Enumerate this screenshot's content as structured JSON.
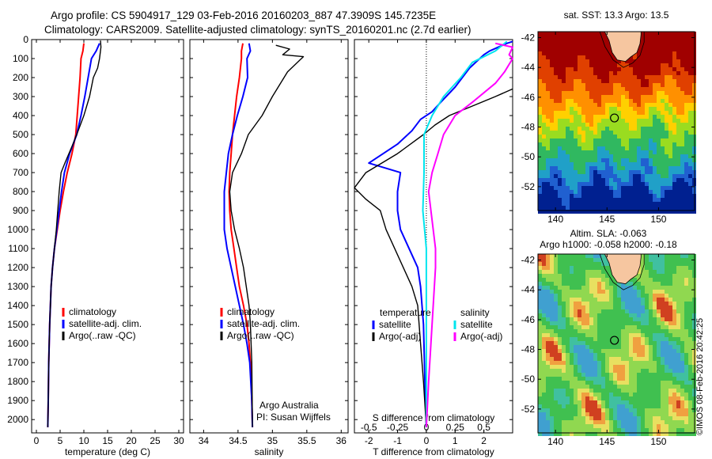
{
  "header": {
    "line1": "Argo profile: CS 5904917_129 03-Feb-2016 20160203_887 47.3909S 145.7235E",
    "line2": "Climatology: CARS2009. Satellite-adjusted climatology: synTS_20160201.nc (2.7d earlier)"
  },
  "watermark": "©IMOS 08-Feb-2016 20:42:25",
  "colors": {
    "climatology": "#ff0000",
    "satellite": "#0000ff",
    "argo": "#000000",
    "sat_salinity": "#00e5ee",
    "argo_salinity_diff": "#ff00ff"
  },
  "chart_data": [
    {
      "type": "line",
      "id": "temperature",
      "xlabel": "temperature (deg C)",
      "xlim": [
        -1,
        31
      ],
      "xticks": [
        0,
        5,
        10,
        15,
        20,
        25,
        30
      ],
      "ylim": [
        2070,
        0
      ],
      "yticks": [
        0,
        100,
        200,
        300,
        400,
        500,
        600,
        700,
        800,
        900,
        1000,
        1100,
        1200,
        1300,
        1400,
        1500,
        1600,
        1700,
        1800,
        1900,
        2000
      ],
      "legend": [
        "climatology",
        "satellite-adj. clim.",
        "Argo(..raw -QC)"
      ],
      "series": [
        {
          "name": "climatology",
          "color": "#ff0000",
          "points": [
            [
              10.0,
              20
            ],
            [
              9.8,
              60
            ],
            [
              9.4,
              100
            ],
            [
              9.2,
              200
            ],
            [
              8.9,
              300
            ],
            [
              8.6,
              400
            ],
            [
              8.3,
              500
            ],
            [
              7.5,
              600
            ],
            [
              6.5,
              700
            ],
            [
              5.7,
              800
            ],
            [
              5.0,
              900
            ],
            [
              4.4,
              1000
            ],
            [
              3.8,
              1100
            ],
            [
              3.4,
              1200
            ],
            [
              3.1,
              1300
            ],
            [
              2.8,
              1500
            ],
            [
              2.6,
              1700
            ],
            [
              2.5,
              1900
            ],
            [
              2.4,
              2040
            ]
          ]
        },
        {
          "name": "satellite-adj. clim.",
          "color": "#0000ff",
          "points": [
            [
              13.3,
              20
            ],
            [
              12.6,
              60
            ],
            [
              11.6,
              100
            ],
            [
              10.9,
              200
            ],
            [
              10.2,
              300
            ],
            [
              9.4,
              400
            ],
            [
              8.5,
              500
            ],
            [
              7.0,
              600
            ],
            [
              5.9,
              700
            ],
            [
              5.3,
              800
            ],
            [
              4.8,
              900
            ],
            [
              4.3,
              1000
            ],
            [
              3.8,
              1100
            ],
            [
              3.4,
              1200
            ],
            [
              3.1,
              1300
            ],
            [
              2.8,
              1500
            ],
            [
              2.6,
              1700
            ],
            [
              2.5,
              1900
            ],
            [
              2.4,
              2040
            ]
          ]
        },
        {
          "name": "Argo(..raw -QC)",
          "color": "#000000",
          "points": [
            [
              13.5,
              5
            ],
            [
              13.6,
              40
            ],
            [
              13.3,
              100
            ],
            [
              12.9,
              150
            ],
            [
              12.0,
              200
            ],
            [
              11.2,
              300
            ],
            [
              10.0,
              400
            ],
            [
              8.8,
              480
            ],
            [
              7.7,
              550
            ],
            [
              6.0,
              650
            ],
            [
              5.2,
              700
            ],
            [
              4.8,
              800
            ],
            [
              4.5,
              900
            ],
            [
              4.2,
              1000
            ],
            [
              3.8,
              1100
            ],
            [
              3.4,
              1200
            ],
            [
              3.1,
              1300
            ],
            [
              2.8,
              1500
            ],
            [
              2.6,
              1700
            ],
            [
              2.5,
              1900
            ],
            [
              2.4,
              2040
            ]
          ]
        }
      ]
    },
    {
      "type": "line",
      "id": "salinity",
      "xlabel": "salinity",
      "xlim": [
        33.8,
        36.1
      ],
      "xticks": [
        34,
        34.5,
        35,
        35.5,
        36
      ],
      "ylim": [
        2070,
        0
      ],
      "legend": [
        "climatology",
        "satellite-adj. clim.",
        "Argo(..raw -QC)"
      ],
      "annotations": [
        "Argo Australia",
        "PI: Susan Wijffels"
      ],
      "series": [
        {
          "name": "climatology",
          "color": "#ff0000",
          "points": [
            [
              34.57,
              20
            ],
            [
              34.55,
              60
            ],
            [
              34.55,
              100
            ],
            [
              34.52,
              200
            ],
            [
              34.48,
              300
            ],
            [
              34.45,
              400
            ],
            [
              34.42,
              500
            ],
            [
              34.4,
              600
            ],
            [
              34.38,
              700
            ],
            [
              34.37,
              800
            ],
            [
              34.38,
              900
            ],
            [
              34.4,
              1000
            ],
            [
              34.44,
              1100
            ],
            [
              34.48,
              1200
            ],
            [
              34.52,
              1300
            ],
            [
              34.58,
              1400
            ],
            [
              34.63,
              1500
            ],
            [
              34.66,
              1600
            ],
            [
              34.68,
              1700
            ],
            [
              34.7,
              1900
            ],
            [
              34.71,
              2040
            ]
          ]
        },
        {
          "name": "satellite-adj. clim.",
          "color": "#0000ff",
          "points": [
            [
              34.66,
              20
            ],
            [
              34.68,
              60
            ],
            [
              34.63,
              100
            ],
            [
              34.64,
              200
            ],
            [
              34.57,
              300
            ],
            [
              34.49,
              400
            ],
            [
              34.42,
              500
            ],
            [
              34.36,
              600
            ],
            [
              34.33,
              700
            ],
            [
              34.3,
              800
            ],
            [
              34.3,
              900
            ],
            [
              34.3,
              1000
            ],
            [
              34.34,
              1100
            ],
            [
              34.4,
              1200
            ],
            [
              34.46,
              1300
            ],
            [
              34.52,
              1400
            ],
            [
              34.58,
              1500
            ],
            [
              34.63,
              1600
            ],
            [
              34.67,
              1700
            ],
            [
              34.7,
              1900
            ],
            [
              34.71,
              2040
            ]
          ]
        },
        {
          "name": "Argo(..raw -QC)",
          "color": "#000000",
          "points": [
            [
              35.05,
              30
            ],
            [
              35.25,
              50
            ],
            [
              35.15,
              80
            ],
            [
              35.45,
              90
            ],
            [
              35.22,
              170
            ],
            [
              35.0,
              300
            ],
            [
              34.85,
              400
            ],
            [
              34.65,
              500
            ],
            [
              34.55,
              600
            ],
            [
              34.42,
              700
            ],
            [
              34.38,
              800
            ],
            [
              34.4,
              900
            ],
            [
              34.45,
              1000
            ],
            [
              34.52,
              1100
            ],
            [
              34.58,
              1200
            ],
            [
              34.62,
              1300
            ],
            [
              34.66,
              1400
            ],
            [
              34.68,
              1500
            ],
            [
              34.7,
              1700
            ],
            [
              34.71,
              2040
            ]
          ]
        }
      ]
    },
    {
      "type": "line",
      "id": "difference",
      "xlabel": "T difference from climatology",
      "xlabel2": "S difference from climatology",
      "xlim": [
        -2.5,
        3.0
      ],
      "xticks": [
        -2,
        -1,
        0,
        1,
        2
      ],
      "sticks": [
        -0.5,
        -0.25,
        0,
        0.25,
        0.5
      ],
      "slim": [
        -0.625,
        0.75
      ],
      "ylim": [
        2070,
        0
      ],
      "legend_t_title": "temperature",
      "legend_s_title": "salinity",
      "legend": [
        "satellite",
        "Argo(-adj)",
        "satellite",
        "Argo(-adj)"
      ],
      "series": [
        {
          "name": "satellite",
          "color": "#0000ff",
          "points": [
            [
              3.1,
              10
            ],
            [
              2.8,
              20
            ],
            [
              2.2,
              60
            ],
            [
              2.0,
              80
            ],
            [
              1.5,
              150
            ],
            [
              1.0,
              250
            ],
            [
              0.5,
              330
            ],
            [
              0.2,
              380
            ],
            [
              -0.2,
              420
            ],
            [
              -0.5,
              480
            ],
            [
              -1.0,
              550
            ],
            [
              -1.5,
              600
            ],
            [
              -2.0,
              650
            ],
            [
              -0.9,
              700
            ],
            [
              -1.0,
              800
            ],
            [
              -1.0,
              900
            ],
            [
              -0.9,
              1000
            ],
            [
              -0.6,
              1100
            ],
            [
              -0.3,
              1200
            ],
            [
              -0.2,
              1300
            ],
            [
              -0.1,
              1500
            ],
            [
              -0.05,
              1800
            ],
            [
              0.0,
              2040
            ]
          ]
        },
        {
          "name": "Argo(-adj)",
          "color": "#000000",
          "points": [
            [
              3.0,
              260
            ],
            [
              2.4,
              300
            ],
            [
              1.6,
              350
            ],
            [
              0.8,
              400
            ],
            [
              0.3,
              450
            ],
            [
              -0.1,
              500
            ],
            [
              -1.0,
              600
            ],
            [
              -2.1,
              700
            ],
            [
              -2.5,
              780
            ],
            [
              -2.1,
              840
            ],
            [
              -1.6,
              900
            ],
            [
              -1.4,
              1000
            ],
            [
              -1.1,
              1100
            ],
            [
              -0.8,
              1200
            ],
            [
              -0.5,
              1300
            ],
            [
              -0.3,
              1400
            ],
            [
              -0.2,
              1600
            ],
            [
              -0.1,
              1800
            ],
            [
              0.0,
              2040
            ]
          ]
        },
        {
          "name": "satellite",
          "color": "#00e5ee",
          "points": [
            [
              0.7,
              10
            ],
            [
              0.6,
              60
            ],
            [
              0.4,
              120
            ],
            [
              0.3,
              200
            ],
            [
              0.15,
              300
            ],
            [
              0.05,
              400
            ],
            [
              -0.02,
              500
            ],
            [
              -0.02,
              700
            ],
            [
              -0.03,
              900
            ],
            [
              0.0,
              1100
            ],
            [
              0.0,
              1400
            ],
            [
              0.0,
              1700
            ],
            [
              0.0,
              2040
            ]
          ]
        },
        {
          "name": "Argo(-adj)",
          "color": "#ff00ff",
          "points": [
            [
              0.6,
              20
            ],
            [
              0.8,
              40
            ],
            [
              0.72,
              80
            ],
            [
              0.78,
              100
            ],
            [
              0.68,
              170
            ],
            [
              0.6,
              230
            ],
            [
              0.4,
              330
            ],
            [
              0.25,
              400
            ],
            [
              0.15,
              500
            ],
            [
              0.1,
              600
            ],
            [
              0.05,
              700
            ],
            [
              0.02,
              800
            ],
            [
              0.04,
              900
            ],
            [
              0.06,
              1000
            ],
            [
              0.08,
              1100
            ],
            [
              0.08,
              1200
            ],
            [
              0.06,
              1400
            ],
            [
              0.04,
              1600
            ],
            [
              0.02,
              1800
            ],
            [
              0.0,
              2040
            ]
          ]
        }
      ]
    },
    {
      "type": "heatmap",
      "id": "sst_map",
      "title": "sat. SST: 13.3  Argo: 13.5",
      "xlim": [
        138.3,
        153.5
      ],
      "ylim": [
        -53.6,
        -41.6
      ],
      "xticks": [
        140,
        145,
        150
      ],
      "yticks": [
        -42,
        -44,
        -46,
        -48,
        -50,
        -52
      ],
      "marker": {
        "lon": 145.72,
        "lat": -47.39
      }
    },
    {
      "type": "heatmap",
      "id": "sla_map",
      "title": "Altim. SLA: -0.063",
      "subtitle": "Argo h1000: -0.058 h2000: -0.18",
      "xlim": [
        138.3,
        153.5
      ],
      "ylim": [
        -53.6,
        -41.6
      ],
      "xticks": [
        140,
        145,
        150
      ],
      "yticks": [
        -42,
        -44,
        -46,
        -48,
        -50,
        -52
      ],
      "marker": {
        "lon": 145.72,
        "lat": -47.39
      }
    }
  ]
}
